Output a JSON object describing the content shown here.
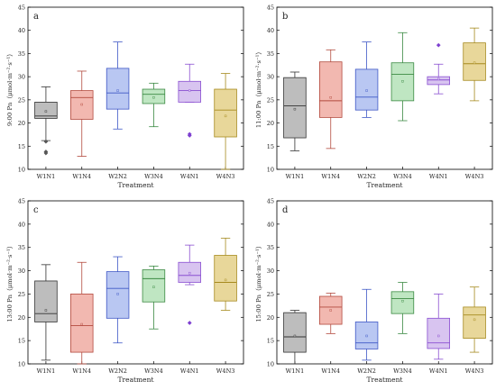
{
  "chart_data": [
    {
      "type": "box",
      "panel_label": "a",
      "ylabel": "9:00 Pn（μmol·m⁻²·s⁻¹）",
      "xlabel": "Treatment",
      "ylim": [
        10,
        45
      ],
      "yticks": [
        10,
        15,
        20,
        25,
        30,
        35,
        40,
        45
      ],
      "categories": [
        "W1N1",
        "W1N4",
        "W2N2",
        "W3N4",
        "W4N1",
        "W4N3"
      ],
      "boxes": [
        {
          "min": 16.2,
          "q1": 21.0,
          "median": 21.5,
          "q3": 24.5,
          "max": 27.8,
          "mean": 22.5,
          "outliers": [
            13.5,
            13.8,
            16.0
          ]
        },
        {
          "min": 12.8,
          "q1": 20.8,
          "median": 25.5,
          "q3": 27.0,
          "max": 31.2,
          "mean": 24.0,
          "outliers": []
        },
        {
          "min": 18.7,
          "q1": 23.0,
          "median": 26.5,
          "q3": 31.8,
          "max": 37.5,
          "mean": 27.0,
          "outliers": []
        },
        {
          "min": 19.2,
          "q1": 24.2,
          "median": 26.2,
          "q3": 27.3,
          "max": 28.6,
          "mean": 25.5,
          "outliers": []
        },
        {
          "min": 24.5,
          "q1": 24.5,
          "median": 27.0,
          "q3": 29.0,
          "max": 32.7,
          "mean": 27.0,
          "outliers": [
            17.3,
            17.6
          ]
        },
        {
          "min": 10.0,
          "q1": 17.0,
          "median": 22.8,
          "q3": 27.3,
          "max": 30.7,
          "mean": 21.5,
          "outliers": []
        }
      ]
    },
    {
      "type": "box",
      "panel_label": "b",
      "ylabel": "11:00 Pn（μmol·m⁻²·s⁻¹）",
      "xlabel": "Treatment",
      "ylim": [
        10,
        45
      ],
      "yticks": [
        10,
        15,
        20,
        25,
        30,
        35,
        40,
        45
      ],
      "categories": [
        "W1N1",
        "W1N4",
        "W2N2",
        "W3N4",
        "W4N1",
        "W4N3"
      ],
      "boxes": [
        {
          "min": 14.0,
          "q1": 16.8,
          "median": 23.7,
          "q3": 29.8,
          "max": 31.0,
          "mean": 23.0,
          "outliers": []
        },
        {
          "min": 14.5,
          "q1": 21.2,
          "median": 24.8,
          "q3": 33.2,
          "max": 35.8,
          "mean": 25.5,
          "outliers": []
        },
        {
          "min": 21.2,
          "q1": 22.8,
          "median": 25.6,
          "q3": 31.6,
          "max": 37.5,
          "mean": 27.0,
          "outliers": []
        },
        {
          "min": 20.5,
          "q1": 24.8,
          "median": 30.5,
          "q3": 33.0,
          "max": 39.5,
          "mean": 29.0,
          "outliers": []
        },
        {
          "min": 26.3,
          "q1": 28.3,
          "median": 29.3,
          "q3": 30.0,
          "max": 32.7,
          "mean": 29.5,
          "outliers": [
            36.8
          ]
        },
        {
          "min": 24.8,
          "q1": 29.2,
          "median": 32.8,
          "q3": 37.3,
          "max": 40.5,
          "mean": 33.0,
          "outliers": []
        }
      ]
    },
    {
      "type": "box",
      "panel_label": "c",
      "ylabel": "13:00 Pn（μmol·m⁻²·s⁻¹）",
      "xlabel": "Treatment",
      "ylim": [
        10,
        45
      ],
      "yticks": [
        10,
        15,
        20,
        25,
        30,
        35,
        40,
        45
      ],
      "categories": [
        "W1N1",
        "W1N4",
        "W2N2",
        "W3N4",
        "W4N1",
        "W4N3"
      ],
      "boxes": [
        {
          "min": 10.8,
          "q1": 19.0,
          "median": 20.8,
          "q3": 27.8,
          "max": 31.3,
          "mean": 21.5,
          "outliers": []
        },
        {
          "min": 10.0,
          "q1": 12.5,
          "median": 18.2,
          "q3": 25.0,
          "max": 31.8,
          "mean": 18.5,
          "outliers": []
        },
        {
          "min": 14.5,
          "q1": 19.8,
          "median": 26.2,
          "q3": 29.8,
          "max": 33.0,
          "mean": 25.0,
          "outliers": []
        },
        {
          "min": 17.5,
          "q1": 23.3,
          "median": 28.3,
          "q3": 30.2,
          "max": 31.0,
          "mean": 26.5,
          "outliers": []
        },
        {
          "min": 27.0,
          "q1": 27.5,
          "median": 29.0,
          "q3": 31.8,
          "max": 35.5,
          "mean": 29.5,
          "outliers": [
            18.8
          ]
        },
        {
          "min": 21.5,
          "q1": 23.5,
          "median": 27.5,
          "q3": 33.3,
          "max": 37.0,
          "mean": 28.0,
          "outliers": []
        }
      ]
    },
    {
      "type": "box",
      "panel_label": "d",
      "ylabel": "15:00 Pn（μmol·m⁻²·s⁻¹）",
      "xlabel": "Treatment",
      "ylim": [
        10,
        45
      ],
      "yticks": [
        10,
        15,
        20,
        25,
        30,
        35,
        40,
        45
      ],
      "categories": [
        "W1N1",
        "W1N4",
        "W2N2",
        "W3N4",
        "W4N1",
        "W4N3"
      ],
      "boxes": [
        {
          "min": 10.0,
          "q1": 12.5,
          "median": 15.8,
          "q3": 21.0,
          "max": 21.5,
          "mean": 16.0,
          "outliers": []
        },
        {
          "min": 16.5,
          "q1": 18.5,
          "median": 22.2,
          "q3": 24.5,
          "max": 25.2,
          "mean": 21.5,
          "outliers": []
        },
        {
          "min": 10.8,
          "q1": 13.2,
          "median": 14.5,
          "q3": 19.0,
          "max": 26.0,
          "mean": 16.0,
          "outliers": []
        },
        {
          "min": 16.5,
          "q1": 20.8,
          "median": 24.0,
          "q3": 25.5,
          "max": 27.5,
          "mean": 23.5,
          "outliers": []
        },
        {
          "min": 11.0,
          "q1": 13.3,
          "median": 14.5,
          "q3": 19.8,
          "max": 25.0,
          "mean": 16.0,
          "outliers": []
        },
        {
          "min": 12.5,
          "q1": 15.5,
          "median": 20.5,
          "q3": 22.2,
          "max": 26.5,
          "mean": 19.5,
          "outliers": []
        }
      ]
    }
  ],
  "colors": {
    "W1N1": {
      "fill": "#bdbdbd",
      "stroke": "#333333",
      "marker": "#555555"
    },
    "W1N4": {
      "fill": "#f2b8b0",
      "stroke": "#b34a3e",
      "marker": "#b34a3e"
    },
    "W2N2": {
      "fill": "#b9c7f2",
      "stroke": "#3f58c6",
      "marker": "#3f58c6"
    },
    "W3N4": {
      "fill": "#bfe6c2",
      "stroke": "#3b8a43",
      "marker": "#3b8a43"
    },
    "W4N1": {
      "fill": "#d8c4f0",
      "stroke": "#8a4fd1",
      "marker": "#7d3fd0"
    },
    "W4N3": {
      "fill": "#e8d79a",
      "stroke": "#a68a1e",
      "marker": "#a68a1e"
    }
  }
}
